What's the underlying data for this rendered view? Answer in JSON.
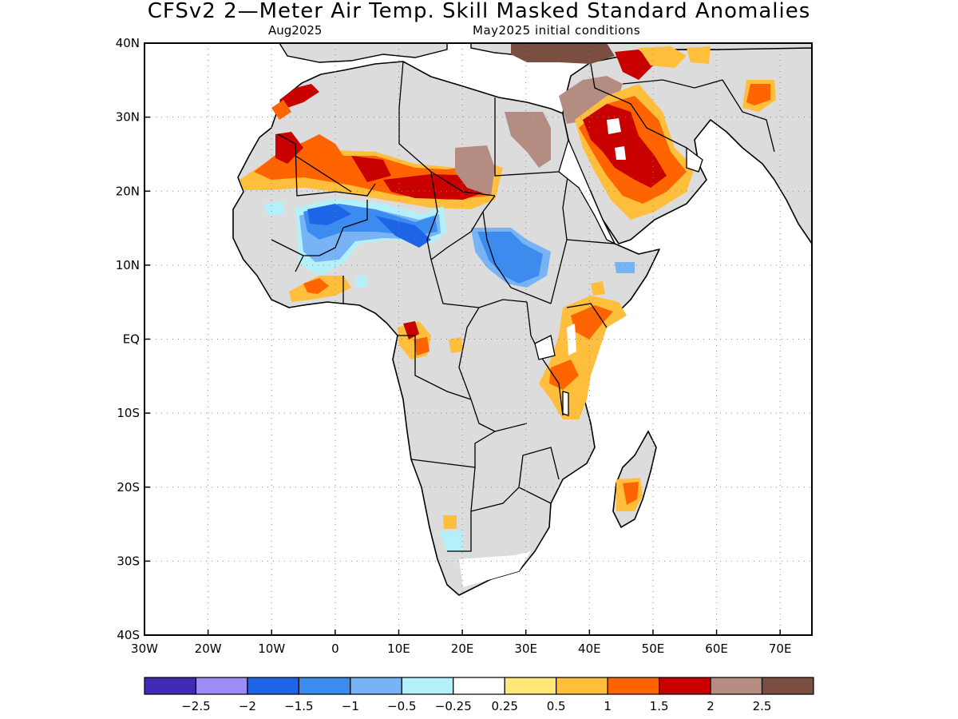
{
  "title": "CFSv2 2—Meter Air Temp. Skill Masked Standard Anomalies",
  "valid_month": "Aug2025",
  "initial_conditions": "May2025 initial conditions",
  "map": {
    "lon_range": [
      -30,
      75
    ],
    "lat_range": [
      -40,
      40
    ],
    "lat_ticks": [
      {
        "value": 40,
        "label": "40N"
      },
      {
        "value": 30,
        "label": "30N"
      },
      {
        "value": 20,
        "label": "20N"
      },
      {
        "value": 10,
        "label": "10N"
      },
      {
        "value": 0,
        "label": "EQ"
      },
      {
        "value": -10,
        "label": "10S"
      },
      {
        "value": -20,
        "label": "20S"
      },
      {
        "value": -30,
        "label": "30S"
      },
      {
        "value": -40,
        "label": "40S"
      }
    ],
    "lon_ticks": [
      {
        "value": -30,
        "label": "30W"
      },
      {
        "value": -20,
        "label": "20W"
      },
      {
        "value": -10,
        "label": "10W"
      },
      {
        "value": 0,
        "label": "0"
      },
      {
        "value": 10,
        "label": "10E"
      },
      {
        "value": 20,
        "label": "20E"
      },
      {
        "value": 30,
        "label": "30E"
      },
      {
        "value": 40,
        "label": "40E"
      },
      {
        "value": 50,
        "label": "50E"
      },
      {
        "value": 60,
        "label": "60E"
      },
      {
        "value": 70,
        "label": "70E"
      }
    ],
    "gridlines": "dotted",
    "masked_color": "#dcdcdc",
    "land_outline_color": "#000000"
  },
  "colorbar": {
    "colors": [
      "#3f2bb4",
      "#9c8cf5",
      "#1e64e6",
      "#3c8cf0",
      "#78b4f5",
      "#b4f0fa",
      "#ffffff",
      "#ffe678",
      "#ffbe3c",
      "#ff6400",
      "#c80000",
      "#b48c82",
      "#7a4f41"
    ],
    "labels": [
      "−2.5",
      "−2",
      "−1.5",
      "−1",
      "−0.5",
      "−0.25",
      "0.25",
      "0.5",
      "1",
      "1.5",
      "2",
      "2.5"
    ]
  },
  "anomaly_regions": [
    {
      "name": "nw-africa-warm",
      "level": "1.5",
      "lon": [
        -14,
        2
      ],
      "lat": [
        21,
        27
      ]
    },
    {
      "name": "morocco-hot",
      "level": "2",
      "lon": [
        -8,
        -4
      ],
      "lat": [
        31,
        34
      ]
    },
    {
      "name": "sahel-hot",
      "level": "2",
      "lon": [
        5,
        23
      ],
      "lat": [
        19,
        23
      ]
    },
    {
      "name": "sahara-very-hot",
      "level": "2.5",
      "lon": [
        18,
        25
      ],
      "lat": [
        21,
        26
      ]
    },
    {
      "name": "sahel-cold",
      "level": "-1.5",
      "lon": [
        -5,
        16
      ],
      "lat": [
        14,
        18
      ]
    },
    {
      "name": "sahel-cool",
      "level": "-1",
      "lon": [
        -5,
        15
      ],
      "lat": [
        10,
        14
      ]
    },
    {
      "name": "sudan-cold",
      "level": "-1.5",
      "lon": [
        21,
        33
      ],
      "lat": [
        9,
        14
      ]
    },
    {
      "name": "egypt-very-hot",
      "level": "2.5",
      "lon": [
        27,
        34
      ],
      "lat": [
        25,
        30
      ]
    },
    {
      "name": "arabia-hot",
      "level": "2",
      "lon": [
        37,
        52
      ],
      "lat": [
        20,
        31
      ]
    },
    {
      "name": "east-africa-warm",
      "level": "1",
      "lon": [
        35,
        46
      ],
      "lat": [
        -10,
        4
      ]
    },
    {
      "name": "madagascar-warm",
      "level": "1.5",
      "lon": [
        44,
        48
      ],
      "lat": [
        -23,
        -19
      ]
    },
    {
      "name": "gulf-of-guinea-warm",
      "level": "1",
      "lon": [
        -8,
        1
      ],
      "lat": [
        5,
        8
      ]
    }
  ]
}
